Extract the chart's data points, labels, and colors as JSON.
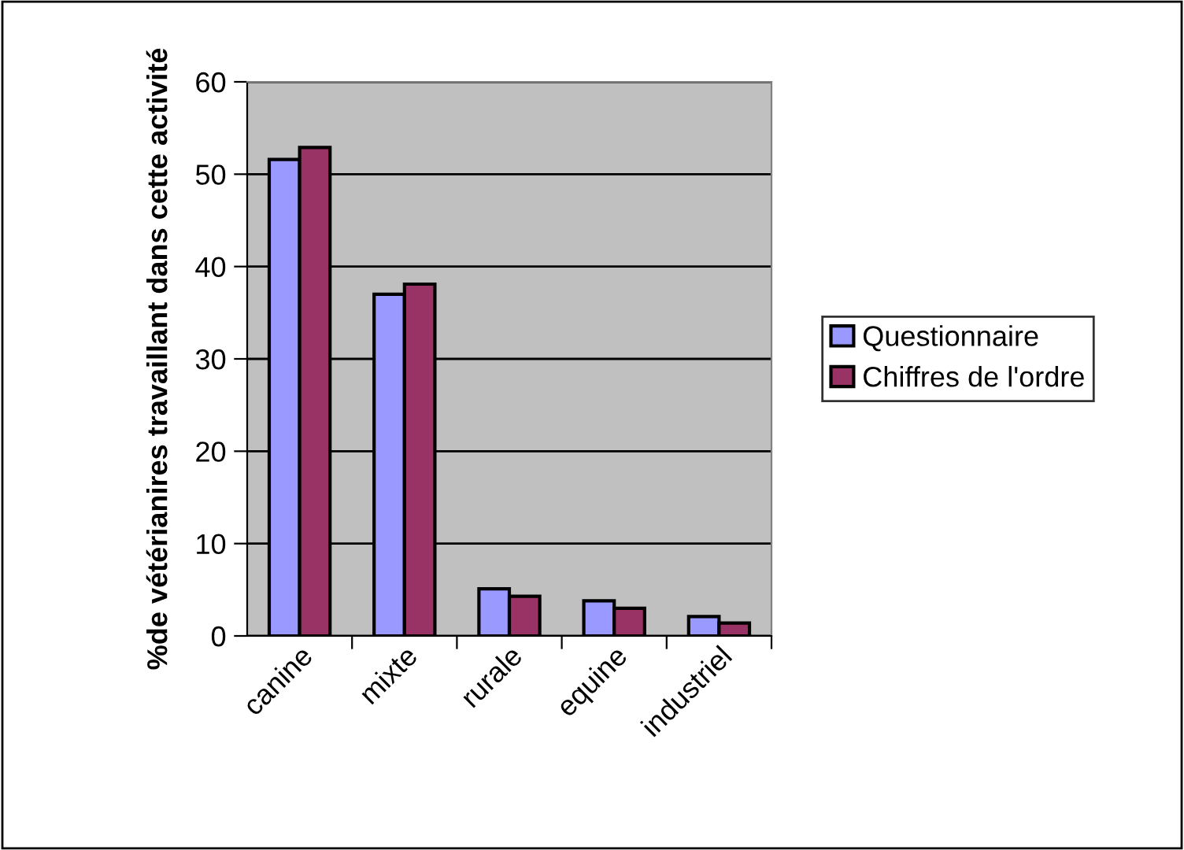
{
  "chart_data": {
    "type": "bar",
    "ylabel": "%de vétérianires travaillant dans cette activité",
    "categories": [
      "canine",
      "mixte",
      "rurale",
      "equine",
      "industriel"
    ],
    "series": [
      {
        "name": "Questionnaire",
        "color": "#9999ff",
        "values": [
          51.6,
          37.0,
          5.1,
          3.8,
          2.1
        ]
      },
      {
        "name": "Chiffres de l'ordre",
        "color": "#993366",
        "values": [
          52.9,
          38.1,
          4.3,
          3.0,
          1.4
        ]
      }
    ],
    "ylim": [
      0,
      60
    ],
    "yticks": [
      0,
      10,
      20,
      30,
      40,
      50,
      60
    ],
    "grid": "y",
    "legend": "right"
  }
}
